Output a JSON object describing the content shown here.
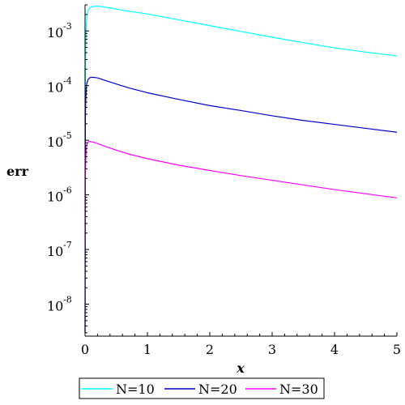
{
  "chart_data": {
    "type": "line",
    "xlabel": "x",
    "ylabel": "err",
    "xlim": [
      0,
      5
    ],
    "ylim": [
      2.6e-09,
      0.003
    ],
    "yscale": "log",
    "x_ticks": [
      {
        "value": 0,
        "label": "0"
      },
      {
        "value": 1,
        "label": "1"
      },
      {
        "value": 2,
        "label": "2"
      },
      {
        "value": 3,
        "label": "3"
      },
      {
        "value": 4,
        "label": "4"
      },
      {
        "value": 5,
        "label": "5"
      }
    ],
    "y_ticks": [
      {
        "value": 0.001,
        "base": "10",
        "exp": "-3"
      },
      {
        "value": 0.0001,
        "base": "10",
        "exp": "-4"
      },
      {
        "value": 1e-05,
        "base": "10",
        "exp": "-5"
      },
      {
        "value": 1e-06,
        "base": "10",
        "exp": "-6"
      },
      {
        "value": 1e-07,
        "base": "10",
        "exp": "-7"
      },
      {
        "value": 1e-08,
        "base": "10",
        "exp": "-8"
      }
    ],
    "grid": false,
    "legend": "bottom",
    "series": [
      {
        "name": "N=10",
        "color": "#00ffff",
        "x": [
          0,
          0.005,
          0.01,
          0.02,
          0.03,
          0.05,
          0.07,
          0.1,
          0.15,
          0.2,
          0.25,
          0.3,
          0.4,
          0.5,
          0.7,
          1.0,
          1.5,
          2.0,
          2.5,
          3.0,
          3.5,
          4.0,
          4.5,
          5.0
        ],
        "y": [
          3e-09,
          0.00012,
          0.0005,
          0.0013,
          0.0019,
          0.0024,
          0.0026,
          0.00273,
          0.00282,
          0.00283,
          0.0028,
          0.00275,
          0.00265,
          0.00252,
          0.0023,
          0.00205,
          0.0016,
          0.00125,
          0.00098,
          0.00077,
          0.00061,
          0.00049,
          0.00041,
          0.00035
        ]
      },
      {
        "name": "N=20",
        "color": "#0000cd",
        "x": [
          0,
          0.005,
          0.01,
          0.02,
          0.03,
          0.05,
          0.07,
          0.1,
          0.15,
          0.2,
          0.3,
          0.5,
          0.7,
          1.0,
          1.5,
          2.0,
          2.5,
          3.0,
          3.5,
          4.0,
          4.5,
          5.0
        ],
        "y": [
          3e-09,
          2.5e-05,
          5e-05,
          9e-05,
          0.000112,
          0.00013,
          0.000138,
          0.000142,
          0.000141,
          0.000138,
          0.000127,
          0.000107,
          9.1e-05,
          7.4e-05,
          5.6e-05,
          4.3e-05,
          3.5e-05,
          2.8e-05,
          2.3e-05,
          1.95e-05,
          1.65e-05,
          1.4e-05
        ]
      },
      {
        "name": "N=30",
        "color": "#ff00ff",
        "x": [
          0,
          0.005,
          0.01,
          0.02,
          0.03,
          0.05,
          0.07,
          0.1,
          0.15,
          0.2,
          0.3,
          0.5,
          0.7,
          1.0,
          1.5,
          2.0,
          2.5,
          3.0,
          3.5,
          4.0,
          4.5,
          5.0
        ],
        "y": [
          3e-09,
          2e-06,
          4e-06,
          7e-06,
          8.4e-06,
          9.3e-06,
          9.5e-06,
          9.4e-06,
          9.1e-06,
          8.7e-06,
          7.9e-06,
          6.6e-06,
          5.6e-06,
          4.6e-06,
          3.5e-06,
          2.8e-06,
          2.25e-06,
          1.85e-06,
          1.52e-06,
          1.25e-06,
          1.05e-06,
          8.8e-07
        ]
      }
    ]
  }
}
